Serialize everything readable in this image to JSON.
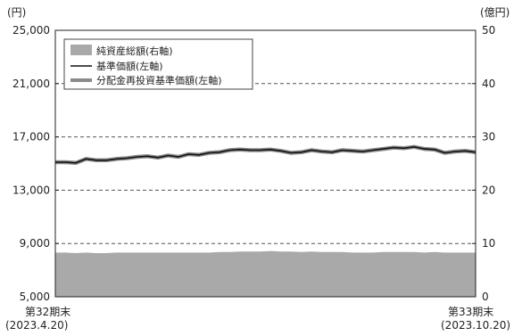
{
  "chart_data": {
    "type": "area",
    "left_axis": {
      "unit": "(円)",
      "ylim": [
        5000,
        25000
      ],
      "ticks": [
        "25,000",
        "21,000",
        "17,000",
        "13,000",
        "9,000",
        "5,000"
      ]
    },
    "right_axis": {
      "unit": "(億円)",
      "ylim": [
        0,
        50
      ],
      "ticks": [
        "50",
        "40",
        "30",
        "20",
        "10",
        "0"
      ]
    },
    "x_start_label": {
      "line1": "第32期末",
      "line2": "(2023.4.20)"
    },
    "x_end_label": {
      "line1": "第33期末",
      "line2": "(2023.10.20)"
    },
    "grid": "dashed-horizontal",
    "legend_position": "top-left",
    "series": [
      {
        "name": "純資産総額(右軸)",
        "axis": "right",
        "color": "#a9a9a9",
        "style": "area",
        "values": [
          8.3,
          8.3,
          8.2,
          8.3,
          8.2,
          8.2,
          8.3,
          8.3,
          8.3,
          8.3,
          8.3,
          8.3,
          8.3,
          8.3,
          8.3,
          8.3,
          8.4,
          8.4,
          8.5,
          8.5,
          8.5,
          8.6,
          8.5,
          8.5,
          8.4,
          8.5,
          8.4,
          8.4,
          8.4,
          8.3,
          8.3,
          8.3,
          8.4,
          8.4,
          8.4,
          8.4,
          8.3,
          8.4,
          8.3,
          8.3,
          8.3,
          8.3
        ]
      },
      {
        "name": "基準価額(左軸)",
        "axis": "left",
        "color": "#111111",
        "style": "line",
        "values": [
          15100,
          15100,
          15050,
          15350,
          15250,
          15250,
          15350,
          15400,
          15500,
          15550,
          15450,
          15600,
          15500,
          15700,
          15650,
          15800,
          15850,
          16000,
          16050,
          16000,
          16000,
          16050,
          15950,
          15800,
          15850,
          16000,
          15900,
          15850,
          16000,
          15950,
          15900,
          16000,
          16100,
          16200,
          16150,
          16250,
          16100,
          16050,
          15800,
          15900,
          15950,
          15850
        ]
      },
      {
        "name": "分配金再投資基準価額(左軸)",
        "axis": "left",
        "color": "#8a8a8a",
        "style": "line",
        "values": [
          15100,
          15100,
          15050,
          15350,
          15250,
          15250,
          15350,
          15400,
          15500,
          15550,
          15450,
          15600,
          15500,
          15700,
          15650,
          15800,
          15850,
          16000,
          16050,
          16000,
          16000,
          16050,
          15950,
          15800,
          15850,
          16000,
          15900,
          15850,
          16000,
          15950,
          15900,
          16000,
          16100,
          16200,
          16150,
          16250,
          16100,
          16050,
          15800,
          15900,
          15950,
          15850
        ]
      }
    ]
  }
}
